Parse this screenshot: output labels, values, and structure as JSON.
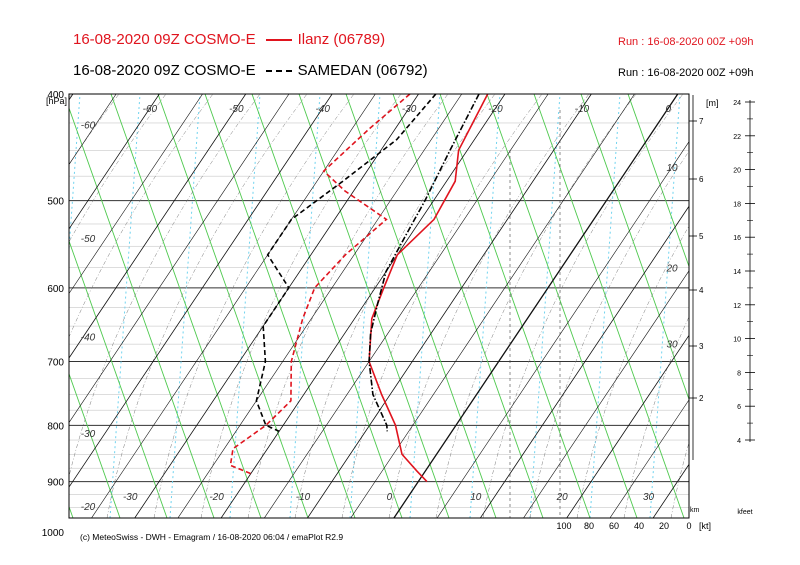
{
  "header": {
    "line1_left": "16-08-2020 09Z COSMO-E",
    "line1_station": "Ilanz (06789)",
    "line1_run": "Run : 16-08-2020 00Z +09h",
    "line2_left": "16-08-2020 09Z COSMO-E",
    "line2_station": "SAMEDAN (06792)",
    "line2_run": "Run : 16-08-2020 00Z +09h"
  },
  "footer": "(c) MeteoSwiss - DWH - Emagram / 16-08-2020  06:04 / emaPlot R2.9",
  "colors": {
    "ilanz": "#e0141e",
    "samedan": "#000000",
    "dry_adiabat": "#4ec94e",
    "mixing_ratio": "#6fd3ef",
    "isotherm": "#000000"
  },
  "chart_data": {
    "type": "line",
    "subtype": "emagram",
    "yunit": "[hPa]",
    "y_ticks": [
      400,
      500,
      600,
      700,
      800,
      900,
      1000
    ],
    "ylim": [
      1020,
      400
    ],
    "temperature_labels": [
      -60,
      -50,
      -40,
      -30,
      -20,
      -10,
      0,
      10,
      20,
      30
    ],
    "theta_labels": [
      -60,
      -50,
      -40,
      -30,
      -20
    ],
    "km_unit": "[m]",
    "km_label": "km",
    "km_ticks": [
      2,
      3,
      4,
      5,
      6,
      7
    ],
    "kt_unit": "[kt]",
    "kt_ticks": [
      100,
      80,
      60,
      40,
      20,
      0
    ],
    "kfeet_label": "kfeet",
    "kfeet_ticks": [
      4,
      6,
      8,
      10,
      12,
      14,
      16,
      18,
      20,
      22,
      24
    ],
    "inner_labels": [
      10,
      20,
      30
    ],
    "series": [
      {
        "name": "Ilanz (06789)",
        "kind": "temperature",
        "style": "solid",
        "points": [
          [
            400,
            -22
          ],
          [
            450,
            -21
          ],
          [
            480,
            -19
          ],
          [
            520,
            -18.5
          ],
          [
            560,
            -20
          ],
          [
            600,
            -19
          ],
          [
            640,
            -18
          ],
          [
            700,
            -15
          ],
          [
            750,
            -11
          ],
          [
            800,
            -7
          ],
          [
            850,
            -4
          ],
          [
            880,
            -1
          ],
          [
            900,
            1
          ]
        ]
      },
      {
        "name": "Ilanz (06789)",
        "kind": "dewpoint",
        "style": "dashed",
        "points": [
          [
            400,
            -31
          ],
          [
            430,
            -33
          ],
          [
            470,
            -35
          ],
          [
            490,
            -31
          ],
          [
            520,
            -24
          ],
          [
            560,
            -26
          ],
          [
            600,
            -27
          ],
          [
            640,
            -26
          ],
          [
            700,
            -24
          ],
          [
            760,
            -21
          ],
          [
            800,
            -22
          ],
          [
            840,
            -24
          ],
          [
            870,
            -23
          ],
          [
            885,
            -20
          ]
        ]
      },
      {
        "name": "SAMEDAN (06792)",
        "kind": "temperature",
        "style": "dashdot",
        "points": [
          [
            400,
            -23
          ],
          [
            450,
            -22
          ],
          [
            500,
            -21
          ],
          [
            540,
            -20.5
          ],
          [
            580,
            -20
          ],
          [
            620,
            -18.5
          ],
          [
            660,
            -17
          ],
          [
            700,
            -15
          ],
          [
            750,
            -12
          ],
          [
            800,
            -8
          ],
          [
            810,
            -7.5
          ]
        ]
      },
      {
        "name": "SAMEDAN (06792)",
        "kind": "dewpoint",
        "style": "dashed",
        "points": [
          [
            400,
            -28
          ],
          [
            440,
            -29
          ],
          [
            480,
            -32
          ],
          [
            520,
            -35
          ],
          [
            560,
            -35
          ],
          [
            600,
            -30
          ],
          [
            650,
            -30
          ],
          [
            700,
            -27
          ],
          [
            760,
            -25
          ],
          [
            800,
            -22
          ],
          [
            810,
            -20
          ]
        ]
      }
    ]
  }
}
